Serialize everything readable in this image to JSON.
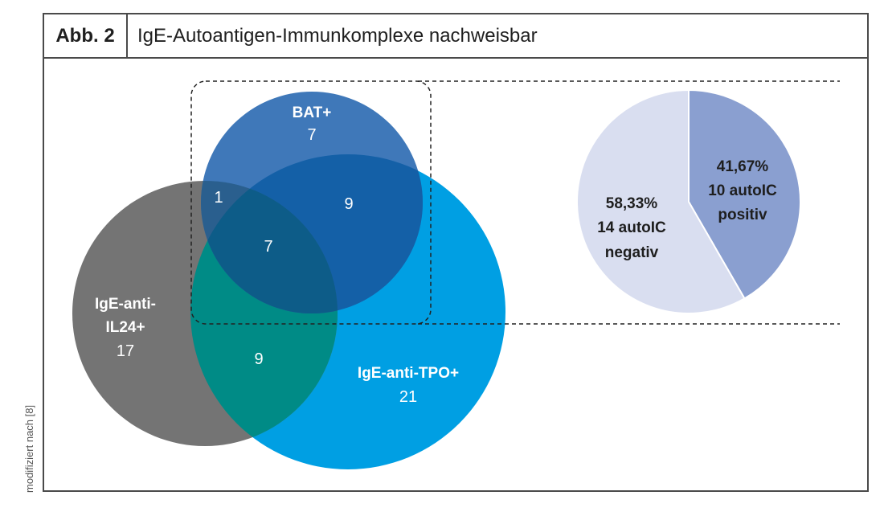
{
  "figure": {
    "label": "Abb. 2",
    "title": "IgE-Autoantigen-Immunkomplexe nachweisbar"
  },
  "venn": {
    "sets": [
      {
        "name": "BAT+",
        "count": "7",
        "color": "#1f5fa8"
      },
      {
        "name_line1": "IgE-anti-",
        "name_line2": "IL24+",
        "count": "17",
        "color": "#6f6f6f"
      },
      {
        "name": "IgE-anti-TPO+",
        "count": "21",
        "color": "#009fe3"
      }
    ],
    "overlaps": {
      "bat_il24": "1",
      "bat_tpo": "9",
      "all_three": "7",
      "il24_tpo": "9"
    }
  },
  "pie": {
    "slices": [
      {
        "percent_label": "41,67%",
        "line2": "10 autoIC",
        "line3": "positiv",
        "value": 41.67,
        "color": "#8a9fd0"
      },
      {
        "percent_label": "58,33%",
        "line2": "14 autoIC",
        "line3": "negativ",
        "value": 58.33,
        "color": "#d9def0"
      }
    ]
  },
  "source_note": "modifiziert nach [8]"
}
